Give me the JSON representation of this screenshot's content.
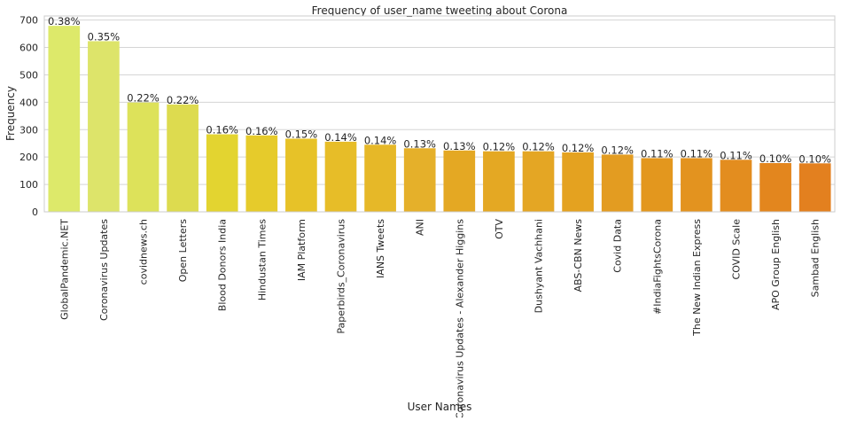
{
  "chart_data": {
    "type": "bar",
    "title": "Frequency of user_name tweeting about Corona",
    "xlabel": "User Names",
    "ylabel": "Frequency",
    "ylim": [
      0,
      715
    ],
    "yticks": [
      0,
      100,
      200,
      300,
      400,
      500,
      600,
      700
    ],
    "grid": "y",
    "categories": [
      "GlobalPandemic.NET",
      "Coronavirus Updates",
      "covidnews.ch",
      "Open Letters",
      "Blood Donors India",
      "Hindustan Times",
      "IAM Platform",
      "Paperbirds_Coronavirus",
      "IANS Tweets",
      "ANI",
      "Coronavirus Updates - Alexander Higgins",
      "OTV",
      "Dushyant Vachhani",
      "ABS-CBN News",
      "Covid Data",
      "#IndiaFightsCorona",
      "The New Indian Express",
      "COVID Scale",
      "APO Group English",
      "Sambad English"
    ],
    "values": [
      679,
      623,
      399,
      392,
      283,
      279,
      267,
      256,
      245,
      232,
      224,
      221,
      221,
      217,
      209,
      196,
      196,
      190,
      178,
      177
    ],
    "labels": [
      "0.38%",
      "0.35%",
      "0.22%",
      "0.22%",
      "0.16%",
      "0.16%",
      "0.15%",
      "0.14%",
      "0.14%",
      "0.13%",
      "0.13%",
      "0.12%",
      "0.12%",
      "0.12%",
      "0.12%",
      "0.11%",
      "0.11%",
      "0.11%",
      "0.10%",
      "0.10%"
    ],
    "colors": [
      "#dde96a",
      "#dde46a",
      "#dde25a",
      "#dddb4f",
      "#e3d430",
      "#e6cb2b",
      "#e7c228",
      "#e7bd28",
      "#e6b828",
      "#e5b02a",
      "#e4a823",
      "#e4a823",
      "#e4a624",
      "#e4a220",
      "#e39c21",
      "#e3971e",
      "#e3931f",
      "#e38d1f",
      "#e3861e",
      "#e3801f"
    ]
  }
}
